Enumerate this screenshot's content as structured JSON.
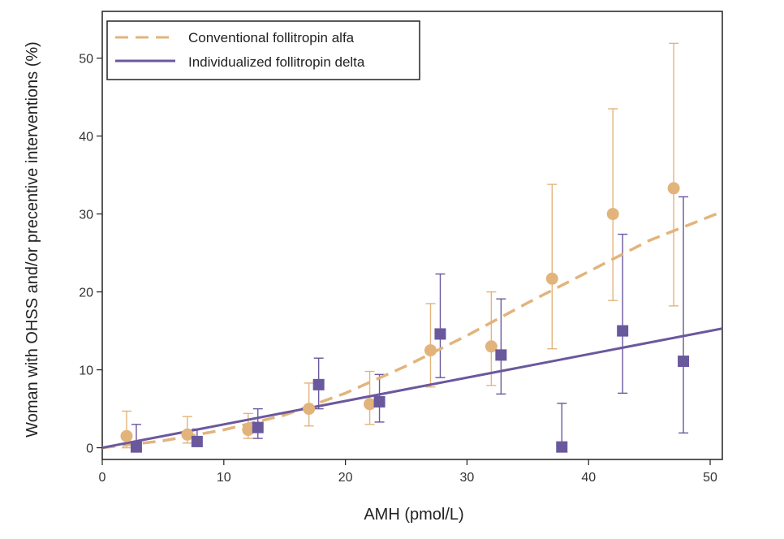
{
  "chart_data": {
    "type": "scatter",
    "xlabel": "AMH (pmol/L)",
    "ylabel": "Woman with OHSS and/or precentive interventions (%)",
    "xlim": [
      0,
      51
    ],
    "ylim": [
      -1.5,
      56
    ],
    "xticks": [
      0,
      10,
      20,
      30,
      40,
      50
    ],
    "yticks": [
      0,
      10,
      20,
      30,
      40,
      50
    ],
    "grid": false,
    "legend_position": "top-left",
    "series": [
      {
        "name": "Conventional follitropin alfa",
        "color": "#E2B47C",
        "line_style": "dashed",
        "marker": "circle",
        "points": [
          {
            "x": 2,
            "y": 1.5,
            "lo": 0,
            "hi": 4.7
          },
          {
            "x": 7,
            "y": 1.7,
            "lo": 0.6,
            "hi": 4.0
          },
          {
            "x": 12,
            "y": 2.3,
            "lo": 1.2,
            "hi": 4.4
          },
          {
            "x": 17,
            "y": 5.0,
            "lo": 2.8,
            "hi": 8.3
          },
          {
            "x": 22,
            "y": 5.6,
            "lo": 3.0,
            "hi": 9.8
          },
          {
            "x": 27,
            "y": 12.5,
            "lo": 7.8,
            "hi": 18.5
          },
          {
            "x": 32,
            "y": 13.0,
            "lo": 8.0,
            "hi": 20.0
          },
          {
            "x": 37,
            "y": 21.7,
            "lo": 12.7,
            "hi": 33.8
          },
          {
            "x": 42,
            "y": 30.0,
            "lo": 18.9,
            "hi": 43.5
          },
          {
            "x": 47,
            "y": 33.3,
            "lo": 18.2,
            "hi": 51.9
          }
        ],
        "fit_line": [
          {
            "x": 0,
            "y": 0
          },
          {
            "x": 5,
            "y": 0.9
          },
          {
            "x": 10,
            "y": 2.3
          },
          {
            "x": 15,
            "y": 4.2
          },
          {
            "x": 20,
            "y": 7.0
          },
          {
            "x": 25,
            "y": 10.5
          },
          {
            "x": 30,
            "y": 14.4
          },
          {
            "x": 35,
            "y": 18.6
          },
          {
            "x": 40,
            "y": 22.6
          },
          {
            "x": 45,
            "y": 26.6
          },
          {
            "x": 51,
            "y": 30.3
          }
        ]
      },
      {
        "name": "Individualized follitropin delta",
        "color": "#6A589D",
        "line_style": "solid",
        "marker": "square",
        "points": [
          {
            "x": 2.8,
            "y": 0.1,
            "lo": 0,
            "hi": 3.0
          },
          {
            "x": 7.8,
            "y": 0.8,
            "lo": 0.4,
            "hi": 2.4
          },
          {
            "x": 12.8,
            "y": 2.6,
            "lo": 1.2,
            "hi": 5.0
          },
          {
            "x": 17.8,
            "y": 8.1,
            "lo": 5.0,
            "hi": 11.5
          },
          {
            "x": 22.8,
            "y": 5.9,
            "lo": 3.3,
            "hi": 9.4
          },
          {
            "x": 27.8,
            "y": 14.6,
            "lo": 9.0,
            "hi": 22.3
          },
          {
            "x": 32.8,
            "y": 11.9,
            "lo": 6.9,
            "hi": 19.1
          },
          {
            "x": 37.8,
            "y": 0.1,
            "lo": 0,
            "hi": 5.7
          },
          {
            "x": 42.8,
            "y": 15.0,
            "lo": 7.0,
            "hi": 27.4
          },
          {
            "x": 47.8,
            "y": 11.1,
            "lo": 1.9,
            "hi": 32.2
          }
        ],
        "fit_line": [
          {
            "x": 0,
            "y": 0
          },
          {
            "x": 51,
            "y": 15.3
          }
        ]
      }
    ]
  }
}
